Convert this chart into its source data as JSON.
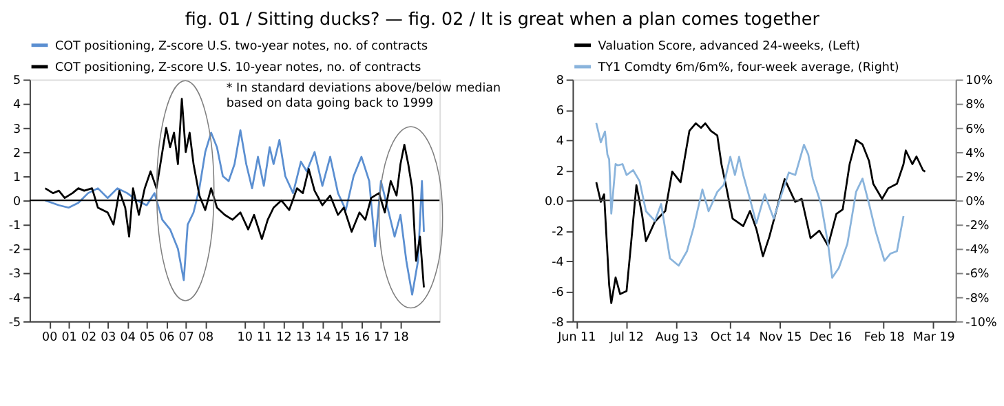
{
  "chart_data": [
    {
      "type": "line",
      "title": "fig. 01 / Sitting ducks? — fig. 02 / It is great when a plan comes together",
      "annotations": [
        "* In standard deviations above/below median\nbased on data going back to 1999"
      ],
      "xlim": [
        1999,
        2020
      ],
      "xticks": [
        {
          "value": 2000,
          "label": "00"
        },
        {
          "value": 2001,
          "label": "01"
        },
        {
          "value": 2002,
          "label": "02"
        },
        {
          "value": 2003,
          "label": "03"
        },
        {
          "value": 2004,
          "label": "04"
        },
        {
          "value": 2005,
          "label": "05"
        },
        {
          "value": 2006,
          "label": "06"
        },
        {
          "value": 2007,
          "label": "07"
        },
        {
          "value": 2008,
          "label": "08"
        },
        {
          "value": 2010,
          "label": "10"
        },
        {
          "value": 2011,
          "label": "11"
        },
        {
          "value": 2012,
          "label": "12"
        },
        {
          "value": 2013,
          "label": "13"
        },
        {
          "value": 2014,
          "label": "14"
        },
        {
          "value": 2015,
          "label": "15"
        },
        {
          "value": 2016,
          "label": "16"
        },
        {
          "value": 2017,
          "label": "17"
        },
        {
          "value": 2018,
          "label": "18"
        }
      ],
      "ylim": [
        -5,
        5
      ],
      "yticks": [
        -5,
        -4,
        -3,
        -2,
        -1,
        0,
        1,
        2,
        3,
        4,
        5
      ],
      "legend": "top left",
      "ref_lines": [
        {
          "axis": "y",
          "value": 0,
          "color": "#000000"
        }
      ],
      "series": [
        {
          "name": "COT positioning, Z-score U.S. two-year notes, no. of contracts",
          "color": "#5b8fd1",
          "x": [
            1999.8,
            2000.5,
            2001,
            2001.5,
            2002,
            2002.5,
            2003,
            2003.5,
            2004,
            2004.5,
            2005,
            2005.4,
            2005.8,
            2006.2,
            2006.6,
            2006.9,
            2007.1,
            2007.4,
            2007.7,
            2008,
            2008.3,
            2008.6,
            2008.9,
            2009.2,
            2009.5,
            2009.8,
            2010.1,
            2010.4,
            2010.7,
            2011,
            2011.3,
            2011.5,
            2011.8,
            2012.1,
            2012.5,
            2012.9,
            2013.2,
            2013.6,
            2014,
            2014.4,
            2014.8,
            2015.2,
            2015.6,
            2016,
            2016.4,
            2016.7,
            2017,
            2017.4,
            2017.7,
            2018,
            2018.3,
            2018.6,
            2018.9,
            2019.1,
            2019.2
          ],
          "values": [
            0,
            -0.2,
            -0.3,
            -0.1,
            0.3,
            0.5,
            0.1,
            0.5,
            0.3,
            0,
            -0.2,
            0.3,
            -0.8,
            -1.2,
            -2,
            -3.3,
            -1,
            -0.5,
            0.5,
            2,
            2.8,
            2.2,
            1,
            0.8,
            1.5,
            2.9,
            1.5,
            0.5,
            1.8,
            0.6,
            2.2,
            1.5,
            2.5,
            1,
            0.3,
            1.6,
            1.2,
            2,
            0.6,
            1.8,
            0.3,
            -0.4,
            1,
            1.8,
            0.8,
            -1.9,
            0.8,
            -0.5,
            -1.5,
            -0.6,
            -2.5,
            -3.9,
            -2.5,
            0.8,
            -1.3
          ]
        },
        {
          "name": "COT positioning, Z-score U.S. 10-year notes, no. of contracts",
          "color": "#000000",
          "x": [
            1999.8,
            2000.2,
            2000.5,
            2000.8,
            2001.2,
            2001.5,
            2001.8,
            2002.2,
            2002.5,
            2003,
            2003.3,
            2003.6,
            2003.9,
            2004.1,
            2004.3,
            2004.6,
            2004.9,
            2005.2,
            2005.5,
            2005.8,
            2006,
            2006.2,
            2006.4,
            2006.6,
            2006.8,
            2007,
            2007.2,
            2007.4,
            2007.7,
            2008,
            2008.3,
            2008.6,
            2009,
            2009.4,
            2009.8,
            2010.2,
            2010.5,
            2010.9,
            2011.2,
            2011.5,
            2011.9,
            2012.3,
            2012.7,
            2013,
            2013.3,
            2013.6,
            2014,
            2014.4,
            2014.8,
            2015.1,
            2015.5,
            2015.9,
            2016.2,
            2016.5,
            2016.9,
            2017.2,
            2017.5,
            2017.8,
            2018,
            2018.2,
            2018.4,
            2018.6,
            2018.8,
            2019,
            2019.2
          ],
          "values": [
            0.5,
            0.3,
            0.4,
            0.1,
            0.3,
            0.5,
            0.4,
            0.5,
            -0.3,
            -0.5,
            -1,
            0.4,
            -0.3,
            -1.5,
            0.5,
            -0.6,
            0.5,
            1.2,
            0.5,
            2,
            3,
            2.2,
            2.8,
            1.5,
            4.2,
            2,
            2.8,
            1.5,
            0.2,
            -0.4,
            0.5,
            -0.3,
            -0.6,
            -0.8,
            -0.5,
            -1.2,
            -0.6,
            -1.6,
            -0.8,
            -0.3,
            0,
            -0.4,
            0.5,
            0.3,
            1.3,
            0.4,
            -0.2,
            0.2,
            -0.6,
            -0.3,
            -1.3,
            -0.5,
            -0.8,
            0.1,
            0.3,
            -0.5,
            0.8,
            0.2,
            1.5,
            2.3,
            1.5,
            0.5,
            -2.5,
            -1.5,
            -3.6
          ]
        }
      ]
    },
    {
      "type": "line",
      "xlim": [
        "2011-05-03",
        "2019-08-25"
      ],
      "xticks": [
        {
          "value": "2011-06-01",
          "label": "Jun 11"
        },
        {
          "value": "2012-07-01",
          "label": "Jul 12"
        },
        {
          "value": "2013-08-01",
          "label": "Aug 13"
        },
        {
          "value": "2014-10-01",
          "label": "Oct 14"
        },
        {
          "value": "2015-11-01",
          "label": "Nov 15"
        },
        {
          "value": "2016-12-01",
          "label": "Dec 16"
        },
        {
          "value": "2018-02-01",
          "label": "Feb 18"
        },
        {
          "value": "2019-03-01",
          "label": "Mar 19"
        }
      ],
      "ylim": [
        -8,
        8
      ],
      "yticks": [
        -8,
        -6,
        -4,
        -2,
        {
          "value": 0,
          "label": "0.0"
        },
        2,
        4,
        6,
        8
      ],
      "y2lim": [
        -10,
        10
      ],
      "y2ticks": [
        {
          "value": -10,
          "label": "-10%"
        },
        {
          "value": -8,
          "label": "-8%"
        },
        {
          "value": -6,
          "label": "-6%"
        },
        {
          "value": -4,
          "label": "-4%"
        },
        {
          "value": -2,
          "label": "-2%"
        },
        {
          "value": 0,
          "label": "0%"
        },
        {
          "value": 2,
          "label": "2%"
        },
        {
          "value": 4,
          "label": "4%"
        },
        {
          "value": 6,
          "label": "6%"
        },
        {
          "value": 8,
          "label": "8%"
        },
        {
          "value": 10,
          "label": "10%"
        }
      ],
      "legend": "top left",
      "ref_lines": [
        {
          "axis": "y",
          "value": 0,
          "color": "#404040"
        }
      ],
      "series": [
        {
          "name": "Valuation Score, advanced 24-weeks, (Left)",
          "color": "#000000",
          "x": [
            "2011-11-07",
            "2011-12-13",
            "2012-01-08",
            "2012-02-17",
            "2012-03-05",
            "2012-04-08",
            "2012-05-14",
            "2012-07-04",
            "2012-08-07",
            "2012-09-20",
            "2012-11-03",
            "2012-12-05",
            "2013-02-14",
            "2013-05-07",
            "2013-07-01",
            "2013-09-05",
            "2013-11-14",
            "2014-01-04",
            "2014-02-14",
            "2014-03-20",
            "2014-05-03",
            "2014-06-23",
            "2014-07-26",
            "2014-09-02",
            "2014-10-22",
            "2015-01-15",
            "2015-03-09",
            "2015-04-29",
            "2015-06-20",
            "2015-08-10",
            "2015-12-09",
            "2016-03-02",
            "2016-04-22",
            "2016-07-01",
            "2016-09-09",
            "2016-11-17",
            "2017-01-22",
            "2017-03-13",
            "2017-05-07",
            "2017-06-27",
            "2017-08-17",
            "2017-10-08",
            "2017-11-10",
            "2018-01-19",
            "2018-03-09",
            "2018-05-17",
            "2018-07-08",
            "2018-07-26",
            "2018-09-16",
            "2018-10-19",
            "2018-12-09",
            "2018-12-27"
          ],
          "values": [
            1.2,
            -0.1,
            0.4,
            -5.6,
            -6.8,
            -5.1,
            -6.2,
            -6,
            -3,
            1,
            -0.9,
            -2.7,
            -1.4,
            -0.7,
            1.9,
            1.2,
            4.6,
            5.1,
            4.8,
            5.1,
            4.6,
            4.3,
            2.4,
            0.9,
            -1.2,
            -1.7,
            -0.7,
            -1.9,
            -3.7,
            -2.4,
            1.4,
            -0.1,
            0.1,
            -2.5,
            -2,
            -3,
            -0.9,
            -0.6,
            2.4,
            4,
            3.7,
            2.6,
            1.1,
            0.1,
            0.8,
            1.1,
            2.4,
            3.3,
            2.4,
            2.9,
            2,
            1.9
          ]
        },
        {
          "name": "TY1 Comdty 6m/6m%, four-week average, (Right)",
          "color": "#8ab4dc",
          "axis": "y2",
          "x": [
            "2011-11-07",
            "2011-12-13",
            "2012-01-15",
            "2012-02-03",
            "2012-02-17",
            "2012-03-05",
            "2012-04-08",
            "2012-04-26",
            "2012-06-02",
            "2012-07-04",
            "2012-08-25",
            "2012-10-15",
            "2012-12-05",
            "2013-02-14",
            "2013-04-04",
            "2013-06-13",
            "2013-08-21",
            "2013-10-26",
            "2013-12-16",
            "2014-02-25",
            "2014-04-15",
            "2014-06-23",
            "2014-08-14",
            "2014-10-04",
            "2014-11-10",
            "2014-12-13",
            "2015-01-15",
            "2015-03-09",
            "2015-04-29",
            "2015-07-04",
            "2015-09-13",
            "2015-11-21",
            "2016-01-11",
            "2016-03-02",
            "2016-05-10",
            "2016-06-13",
            "2016-07-19",
            "2016-09-23",
            "2016-11-17",
            "2016-12-20",
            "2017-02-10",
            "2017-04-19",
            "2017-06-27",
            "2017-08-17",
            "2017-10-08",
            "2017-11-28",
            "2018-02-07",
            "2018-03-27",
            "2018-05-17",
            "2018-07-08"
          ],
          "values": [
            6.4,
            4.8,
            5.7,
            3.8,
            3.4,
            -1.1,
            3,
            2.9,
            3,
            2.1,
            2.5,
            1.6,
            -0.9,
            -1.7,
            -0.3,
            -4.8,
            -5.4,
            -4.2,
            -2.3,
            0.9,
            -0.9,
            0.7,
            1.3,
            3.6,
            2.1,
            3.6,
            2.1,
            0.1,
            -1.9,
            0.5,
            -1.5,
            0.7,
            2.3,
            2.1,
            4.6,
            3.8,
            1.8,
            -0.3,
            -3.6,
            -6.4,
            -5.6,
            -3.6,
            0.7,
            1.8,
            -0.3,
            -2.5,
            -5,
            -4.4,
            -4.2,
            -1.3
          ]
        }
      ]
    }
  ]
}
